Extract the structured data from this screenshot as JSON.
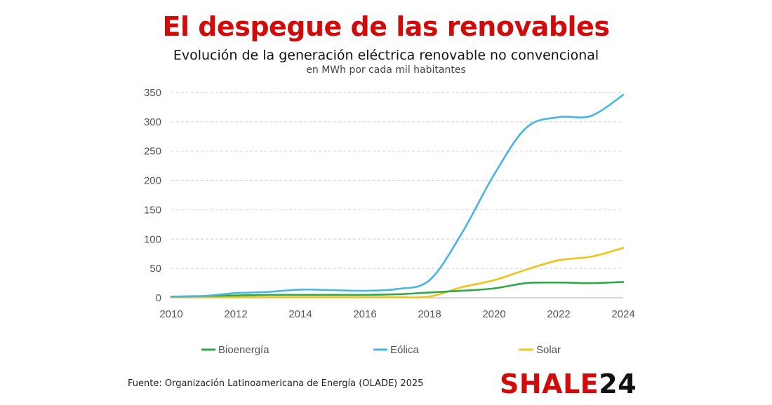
{
  "header": {
    "title": "El despegue de las renovables",
    "subtitle": "Evolución de la generación eléctrica renovable no convencional",
    "units": "en MWh por cada mil habitantes"
  },
  "footer": {
    "source": "Fuente: Organización Latinoamericana de Energía (OLADE) 2025",
    "logo_main": "SHALE",
    "logo_num": "24"
  },
  "colors": {
    "title": "#d10a0a",
    "grid": "#d9d9d9",
    "axis": "#bfbfbf"
  },
  "chart_data": {
    "type": "line",
    "title": "",
    "xlabel": "",
    "ylabel": "",
    "x": [
      2010,
      2011,
      2012,
      2013,
      2014,
      2015,
      2016,
      2017,
      2018,
      2019,
      2020,
      2021,
      2022,
      2023,
      2024
    ],
    "xlim": [
      2010,
      2024
    ],
    "ylim": [
      0,
      350
    ],
    "xticks": [
      "2010",
      "2012",
      "2014",
      "2016",
      "2018",
      "2020",
      "2022",
      "2024"
    ],
    "yticks": [
      "0",
      "50",
      "100",
      "150",
      "200",
      "250",
      "300",
      "350"
    ],
    "grid": true,
    "legend": "bottom",
    "series": [
      {
        "name": "Bioenergía",
        "color": "#2ea84a",
        "values": [
          2,
          3,
          4,
          5,
          5,
          5,
          5,
          6,
          9,
          12,
          16,
          25,
          26,
          25,
          27
        ]
      },
      {
        "name": "Eólica",
        "color": "#45b6e0",
        "values": [
          2,
          3,
          8,
          10,
          14,
          13,
          12,
          15,
          30,
          110,
          210,
          290,
          308,
          310,
          346
        ]
      },
      {
        "name": "Solar",
        "color": "#f2c21b",
        "values": [
          1,
          1,
          1,
          1,
          1,
          1,
          1,
          1,
          2,
          18,
          30,
          48,
          64,
          70,
          85
        ]
      }
    ]
  }
}
